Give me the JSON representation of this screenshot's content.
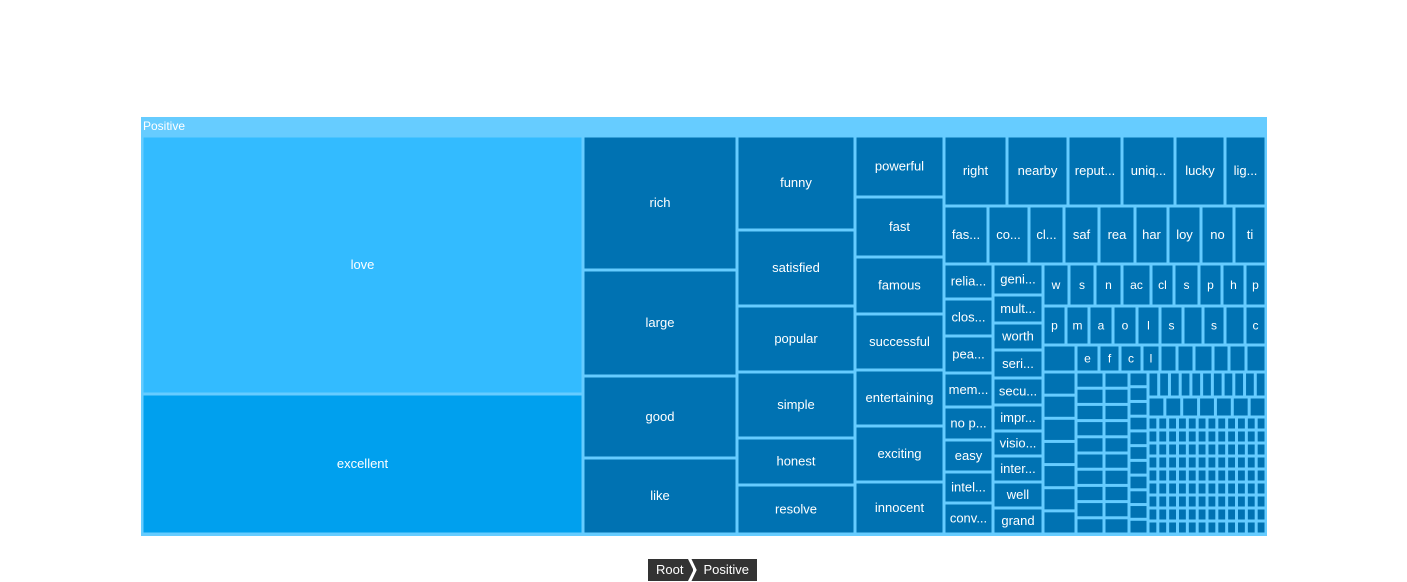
{
  "chart_data": {
    "type": "treemap",
    "root": {
      "name": "Positive",
      "children": [
        {
          "name": "love",
          "value": 112,
          "color": "#33bbff"
        },
        {
          "name": "excellent",
          "value": 60,
          "color": "#00a0ee"
        },
        {
          "name": "rich",
          "value": 20
        },
        {
          "name": "large",
          "value": 16
        },
        {
          "name": "good",
          "value": 12
        },
        {
          "name": "like",
          "value": 11
        },
        {
          "name": "funny",
          "value": 11
        },
        {
          "name": "satisfied",
          "value": 9
        },
        {
          "name": "popular",
          "value": 8
        },
        {
          "name": "simple",
          "value": 8
        },
        {
          "name": "honest",
          "value": 6
        },
        {
          "name": "resolve",
          "value": 6
        },
        {
          "name": "powerful",
          "value": 6
        },
        {
          "name": "fast",
          "value": 6
        },
        {
          "name": "famous",
          "value": 6
        },
        {
          "name": "successful",
          "value": 6
        },
        {
          "name": "entertaining",
          "value": 6
        },
        {
          "name": "exciting",
          "value": 6
        },
        {
          "name": "innocent",
          "value": 5
        },
        {
          "name": "right",
          "value": 4
        },
        {
          "name": "nearby",
          "value": 4
        },
        {
          "name": "reput...",
          "value": 4
        },
        {
          "name": "uniq...",
          "value": 4
        },
        {
          "name": "lucky",
          "value": 4
        },
        {
          "name": "lig...",
          "value": 4
        },
        {
          "name": "fas...",
          "value": 3
        },
        {
          "name": "co...",
          "value": 3
        },
        {
          "name": "cl...",
          "value": 3
        },
        {
          "name": "saf",
          "value": 3
        },
        {
          "name": "rea",
          "value": 3
        },
        {
          "name": "har",
          "value": 3
        },
        {
          "name": "loy",
          "value": 3
        },
        {
          "name": "no",
          "value": 3
        },
        {
          "name": "ti",
          "value": 3
        },
        {
          "name": "relia...",
          "value": 2
        },
        {
          "name": "clos...",
          "value": 2
        },
        {
          "name": "pea...",
          "value": 2
        },
        {
          "name": "mem...",
          "value": 2
        },
        {
          "name": "no p...",
          "value": 2
        },
        {
          "name": "easy",
          "value": 2
        },
        {
          "name": "intel...",
          "value": 2
        },
        {
          "name": "conv...",
          "value": 2
        },
        {
          "name": "geni...",
          "value": 2
        },
        {
          "name": "mult...",
          "value": 2
        },
        {
          "name": "worth",
          "value": 2
        },
        {
          "name": "seri...",
          "value": 2
        },
        {
          "name": "secu...",
          "value": 2
        },
        {
          "name": "impr...",
          "value": 2
        },
        {
          "name": "visio...",
          "value": 2
        },
        {
          "name": "inter...",
          "value": 2
        },
        {
          "name": "well",
          "value": 2
        },
        {
          "name": "grand",
          "value": 2
        },
        {
          "name": "w"
        },
        {
          "name": "s"
        },
        {
          "name": "n"
        },
        {
          "name": "ac"
        },
        {
          "name": "cl"
        },
        {
          "name": "s"
        },
        {
          "name": "p"
        },
        {
          "name": "h"
        },
        {
          "name": "p"
        },
        {
          "name": "p"
        },
        {
          "name": "m"
        },
        {
          "name": "a"
        },
        {
          "name": "o"
        },
        {
          "name": "l"
        },
        {
          "name": "s"
        },
        {
          "name": "s"
        },
        {
          "name": "c"
        },
        {
          "name": "e"
        },
        {
          "name": "f"
        },
        {
          "name": "c"
        },
        {
          "name": "l"
        }
      ]
    },
    "colors": {
      "header": "#66ccff",
      "love": "#33bbff",
      "excellent": "#00a0ee",
      "leaf": "#0072b2",
      "border": "#66ccff"
    }
  },
  "breadcrumb": {
    "root": "Root",
    "current": "Positive"
  }
}
